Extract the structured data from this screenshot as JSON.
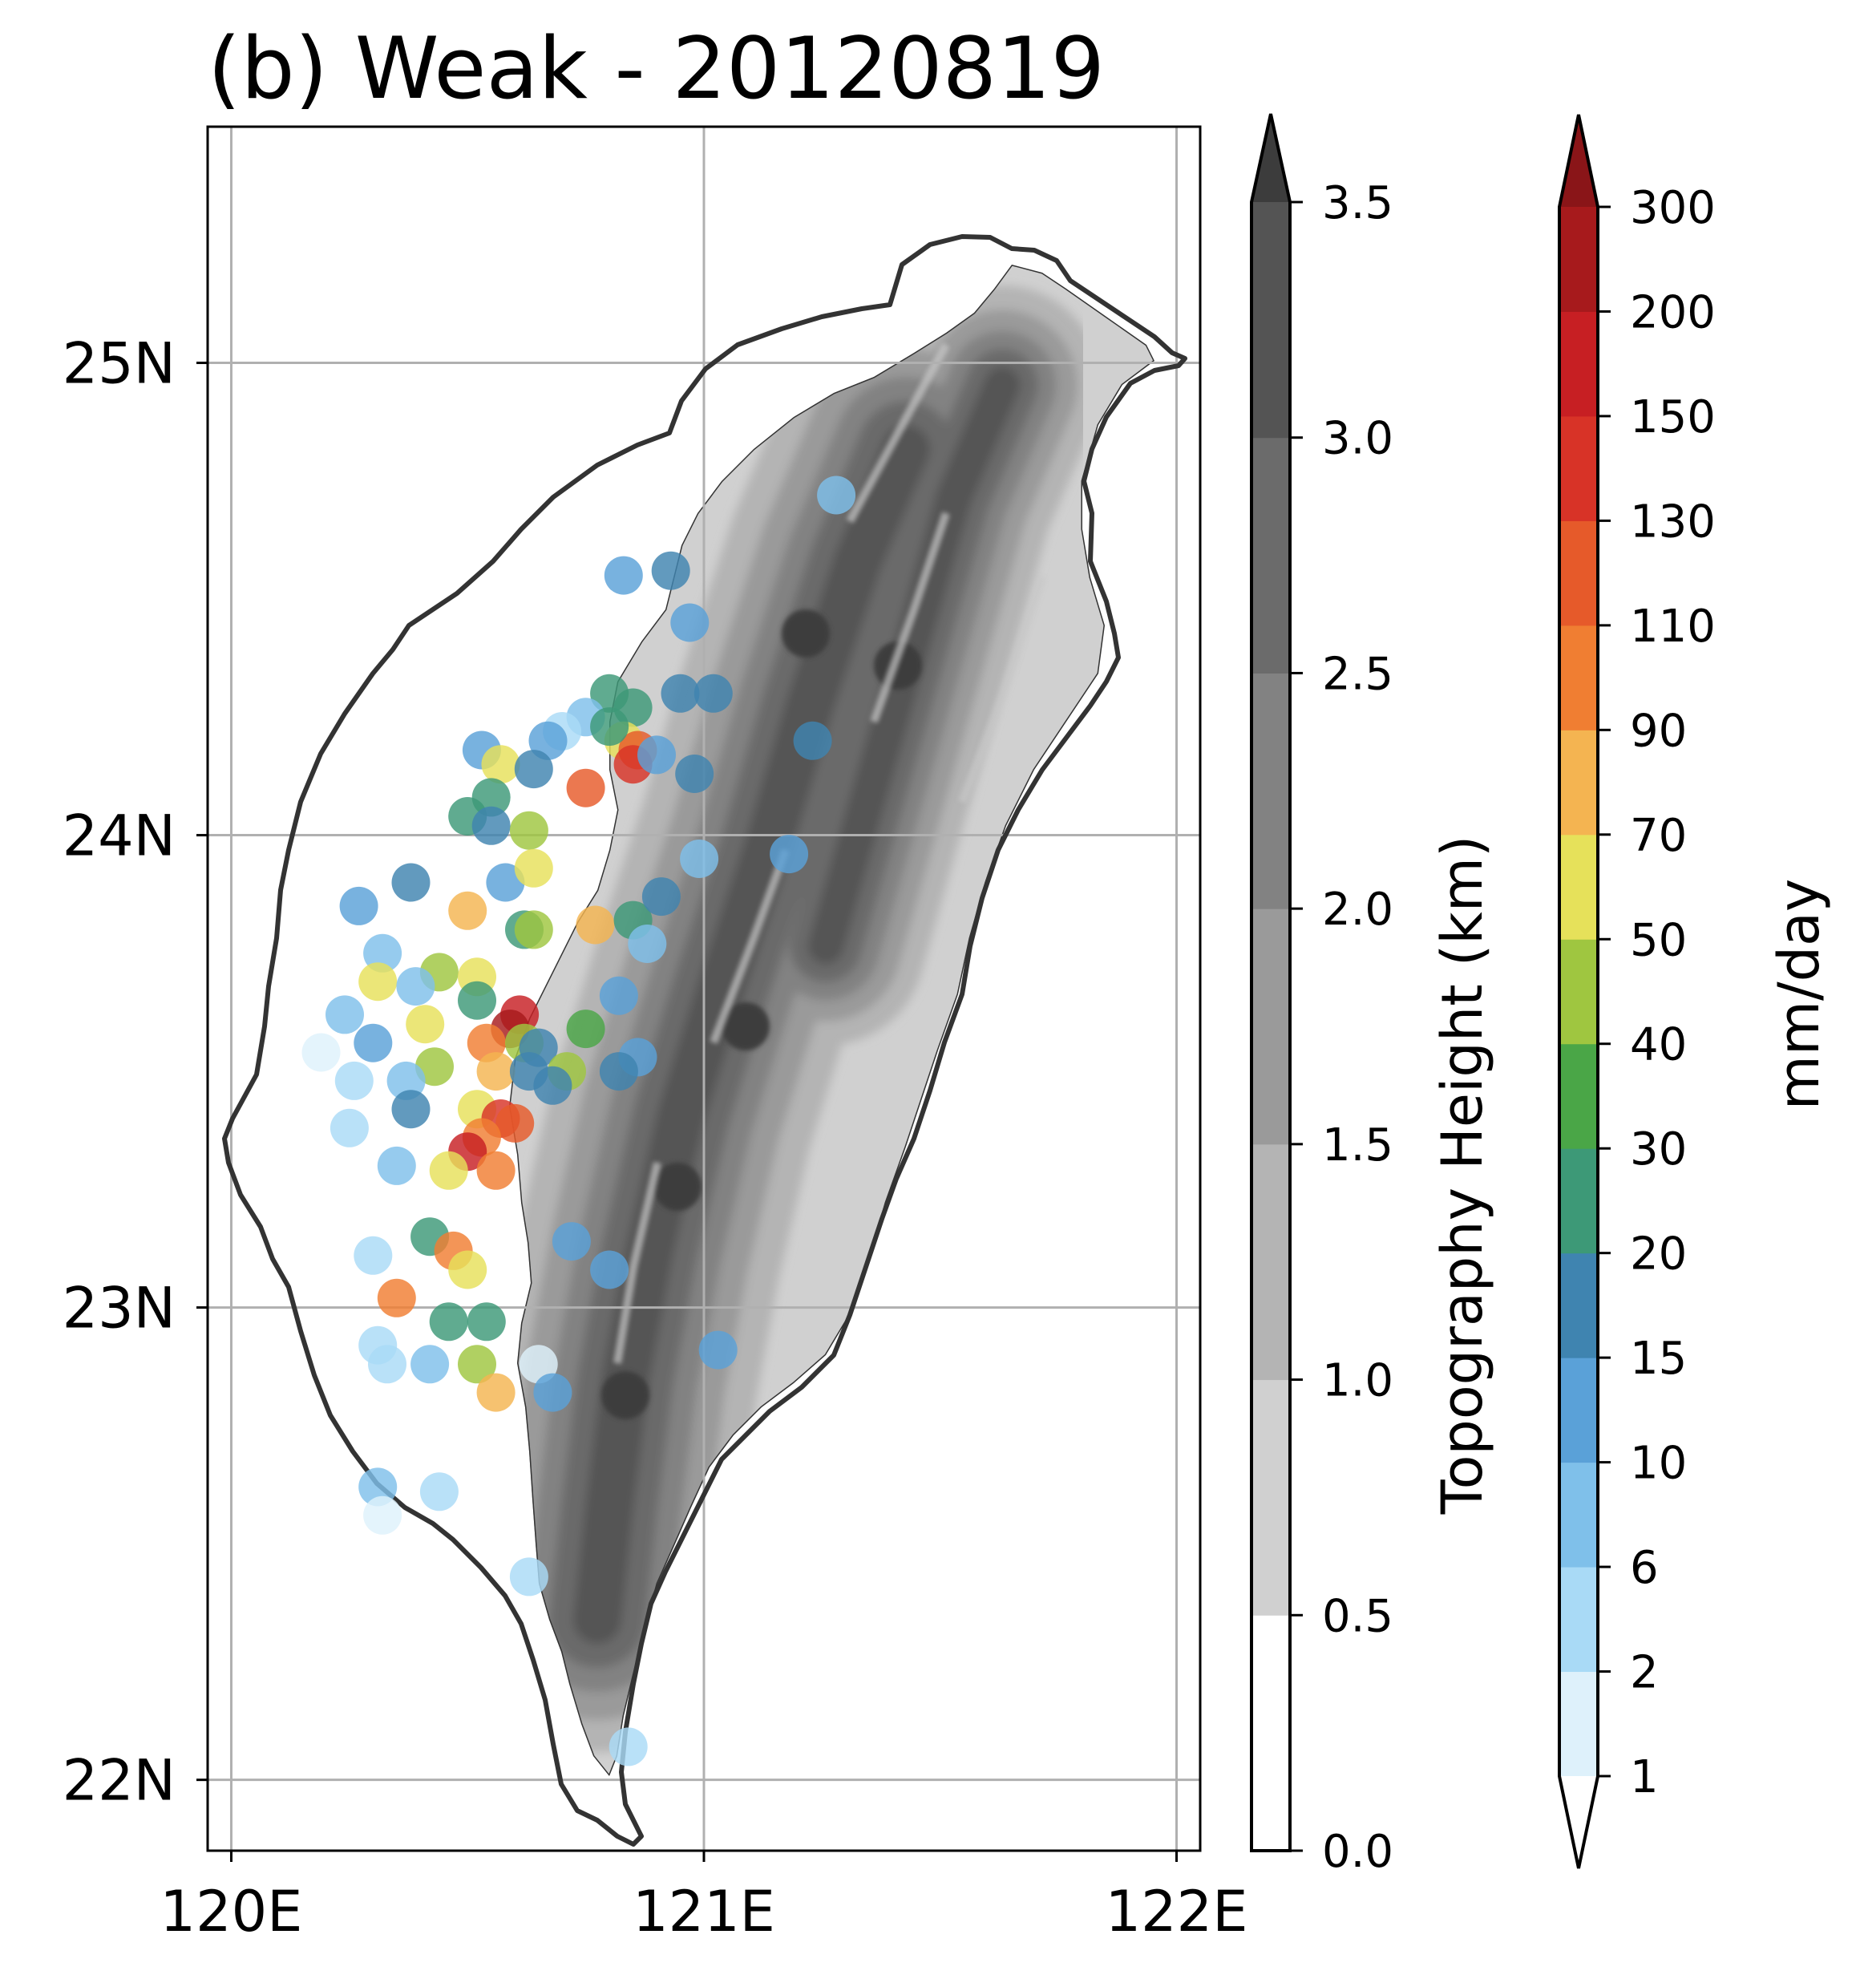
{
  "title": "(b) Weak - 20120819",
  "map": {
    "lon_range": [
      119.95,
      122.05
    ],
    "lat_range": [
      21.85,
      25.5
    ],
    "lon_ticks": [
      {
        "value": 120,
        "label": "120E"
      },
      {
        "value": 121,
        "label": "121E"
      },
      {
        "value": 122,
        "label": "122E"
      }
    ],
    "lat_ticks": [
      {
        "value": 25,
        "label": "25N"
      },
      {
        "value": 24,
        "label": "24N"
      },
      {
        "value": 23,
        "label": "23N"
      },
      {
        "value": 22,
        "label": "22N"
      }
    ],
    "grid": true,
    "coastline_color": "#333333"
  },
  "topography_colorbar": {
    "label": "Topography Height (km)",
    "levels": [
      0.0,
      0.5,
      1.0,
      1.5,
      2.0,
      2.5,
      3.0,
      3.5
    ],
    "tick_labels": [
      "0.0",
      "0.5",
      "1.0",
      "1.5",
      "2.0",
      "2.5",
      "3.0",
      "3.5"
    ],
    "colors": [
      "#ffffff",
      "#d0d0d0",
      "#b4b4b4",
      "#9a9a9a",
      "#828282",
      "#6b6b6b",
      "#545454"
    ],
    "extend_color": "#3c3c3c"
  },
  "rain_colorbar": {
    "label": "mm/day",
    "tick_labels": [
      "1",
      "2",
      "6",
      "10",
      "15",
      "20",
      "30",
      "40",
      "50",
      "70",
      "90",
      "110",
      "130",
      "150",
      "200",
      "300"
    ],
    "colors": [
      "#def1fb",
      "#a9daf6",
      "#7fc0ea",
      "#5aa1d8",
      "#3f84b0",
      "#3d9977",
      "#4aa647",
      "#9fc640",
      "#e6e15a",
      "#f4b451",
      "#f07e32",
      "#e65a2a",
      "#d83327",
      "#c71f23",
      "#a71a1c"
    ],
    "under_color": "#ffffff",
    "over_color": "#8a1518"
  },
  "stations": [
    [
      121.28,
      24.72,
      2
    ],
    [
      120.83,
      24.55,
      3
    ],
    [
      120.93,
      24.56,
      4
    ],
    [
      120.97,
      24.45,
      3
    ],
    [
      120.8,
      24.3,
      5
    ],
    [
      120.85,
      24.27,
      5
    ],
    [
      120.75,
      24.25,
      2
    ],
    [
      120.7,
      24.22,
      1
    ],
    [
      120.67,
      24.2,
      3
    ],
    [
      120.83,
      24.2,
      8
    ],
    [
      120.86,
      24.18,
      11
    ],
    [
      120.85,
      24.15,
      12
    ],
    [
      120.9,
      24.17,
      3
    ],
    [
      120.95,
      24.3,
      4
    ],
    [
      121.02,
      24.3,
      4
    ],
    [
      120.8,
      24.23,
      5
    ],
    [
      120.53,
      24.18,
      3
    ],
    [
      120.57,
      24.15,
      8
    ],
    [
      120.64,
      24.14,
      4
    ],
    [
      120.75,
      24.1,
      11
    ],
    [
      120.98,
      24.13,
      4
    ],
    [
      121.23,
      24.2,
      4
    ],
    [
      120.55,
      24.08,
      5
    ],
    [
      120.5,
      24.04,
      5
    ],
    [
      120.55,
      24.02,
      4
    ],
    [
      120.63,
      24.01,
      7
    ],
    [
      121.18,
      23.96,
      3
    ],
    [
      120.99,
      23.95,
      2
    ],
    [
      120.38,
      23.9,
      4
    ],
    [
      120.58,
      23.9,
      3
    ],
    [
      120.64,
      23.93,
      8
    ],
    [
      120.27,
      23.85,
      3
    ],
    [
      120.5,
      23.84,
      9
    ],
    [
      120.62,
      23.8,
      5
    ],
    [
      120.64,
      23.8,
      7
    ],
    [
      120.77,
      23.81,
      9
    ],
    [
      120.85,
      23.82,
      5
    ],
    [
      120.91,
      23.87,
      4
    ],
    [
      120.88,
      23.77,
      2
    ],
    [
      120.32,
      23.75,
      2
    ],
    [
      120.44,
      23.71,
      7
    ],
    [
      120.52,
      23.7,
      8
    ],
    [
      120.31,
      23.69,
      8
    ],
    [
      120.39,
      23.68,
      2
    ],
    [
      120.52,
      23.65,
      5
    ],
    [
      120.82,
      23.66,
      3
    ],
    [
      120.24,
      23.62,
      2
    ],
    [
      120.61,
      23.62,
      13
    ],
    [
      120.41,
      23.6,
      8
    ],
    [
      120.59,
      23.59,
      14
    ],
    [
      120.75,
      23.59,
      6
    ],
    [
      120.3,
      23.56,
      3
    ],
    [
      120.54,
      23.56,
      10
    ],
    [
      120.62,
      23.56,
      7
    ],
    [
      120.65,
      23.55,
      4
    ],
    [
      120.86,
      23.53,
      3
    ],
    [
      120.19,
      23.54,
      0
    ],
    [
      120.43,
      23.51,
      7
    ],
    [
      120.56,
      23.5,
      9
    ],
    [
      120.63,
      23.5,
      4
    ],
    [
      120.71,
      23.5,
      7
    ],
    [
      120.82,
      23.5,
      4
    ],
    [
      120.26,
      23.48,
      1
    ],
    [
      120.37,
      23.48,
      2
    ],
    [
      120.68,
      23.47,
      4
    ],
    [
      120.52,
      23.42,
      8
    ],
    [
      120.38,
      23.42,
      4
    ],
    [
      120.57,
      23.4,
      12
    ],
    [
      120.6,
      23.39,
      11
    ],
    [
      120.25,
      23.38,
      1
    ],
    [
      120.53,
      23.36,
      10
    ],
    [
      120.5,
      23.33,
      13
    ],
    [
      120.35,
      23.3,
      2
    ],
    [
      120.46,
      23.29,
      8
    ],
    [
      120.56,
      23.29,
      10
    ],
    [
      120.42,
      23.15,
      5
    ],
    [
      120.47,
      23.12,
      10
    ],
    [
      120.72,
      23.14,
      3
    ],
    [
      120.3,
      23.11,
      1
    ],
    [
      120.8,
      23.08,
      3
    ],
    [
      120.5,
      23.08,
      8
    ],
    [
      120.35,
      23.02,
      10
    ],
    [
      120.46,
      22.97,
      5
    ],
    [
      120.54,
      22.97,
      5
    ],
    [
      120.31,
      22.92,
      1
    ],
    [
      120.33,
      22.88,
      1
    ],
    [
      120.42,
      22.88,
      2
    ],
    [
      120.52,
      22.88,
      7
    ],
    [
      120.65,
      22.88,
      0
    ],
    [
      121.03,
      22.91,
      3
    ],
    [
      120.56,
      22.82,
      9
    ],
    [
      120.68,
      22.82,
      3
    ],
    [
      120.31,
      22.62,
      2
    ],
    [
      120.44,
      22.61,
      1
    ],
    [
      120.32,
      22.56,
      0
    ],
    [
      120.63,
      22.43,
      1
    ],
    [
      120.84,
      22.07,
      1
    ]
  ]
}
